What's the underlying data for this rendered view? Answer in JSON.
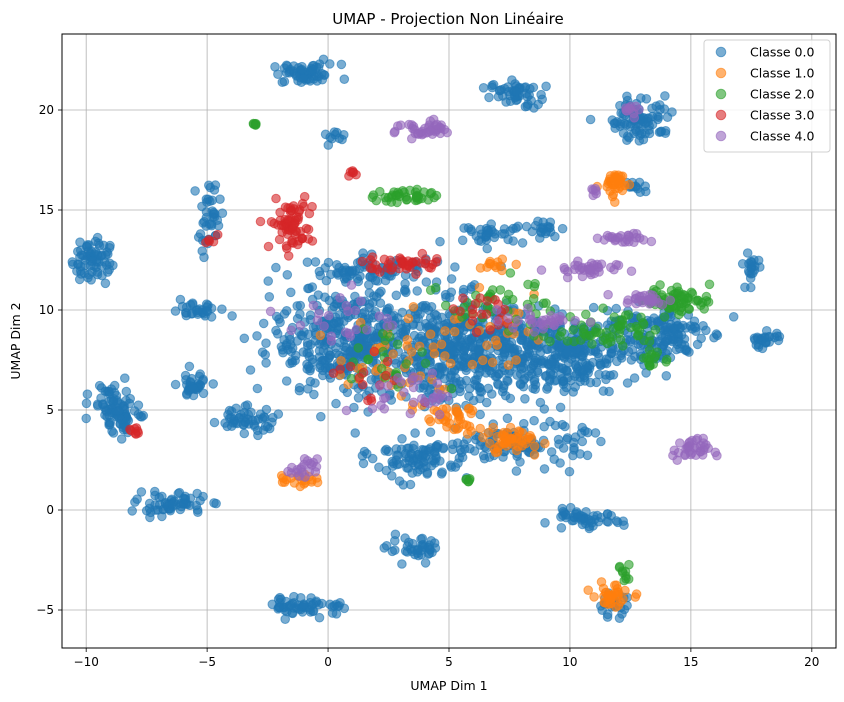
{
  "chart_data": {
    "type": "scatter",
    "title": "UMAP - Projection Non Linéaire",
    "xlabel": "UMAP Dim 1",
    "ylabel": "UMAP Dim 2",
    "xlim": [
      -11,
      21
    ],
    "ylim": [
      -6.9,
      23.8
    ],
    "xticks": [
      -10,
      -5,
      0,
      5,
      10,
      15,
      20
    ],
    "yticks": [
      -5,
      0,
      5,
      10,
      15,
      20
    ],
    "grid": true,
    "legend_position": "top-right",
    "series": [
      {
        "name": "Classe 0.0",
        "color": "#1f77b4",
        "clusters": [
          {
            "cx": -0.9,
            "cy": 21.8,
            "rx": 1.3,
            "ry": 0.45,
            "n": 60
          },
          {
            "cx": 7.7,
            "cy": 20.8,
            "rx": 0.9,
            "ry": 0.6,
            "n": 50
          },
          {
            "cx": 13.0,
            "cy": 19.6,
            "rx": 1.2,
            "ry": 1.0,
            "n": 90
          },
          {
            "cx": -9.8,
            "cy": 12.5,
            "rx": 0.7,
            "ry": 1.1,
            "n": 70
          },
          {
            "cx": -4.9,
            "cy": 14.6,
            "rx": 0.4,
            "ry": 1.5,
            "n": 40
          },
          {
            "cx": -5.5,
            "cy": 10.0,
            "rx": 0.9,
            "ry": 0.35,
            "n": 30
          },
          {
            "cx": -8.9,
            "cy": 5.3,
            "rx": 0.8,
            "ry": 1.0,
            "n": 60
          },
          {
            "cx": -8.6,
            "cy": 4.4,
            "rx": 0.6,
            "ry": 0.6,
            "n": 30
          },
          {
            "cx": -5.6,
            "cy": 6.2,
            "rx": 0.6,
            "ry": 0.6,
            "n": 35
          },
          {
            "cx": -6.5,
            "cy": 0.3,
            "rx": 1.3,
            "ry": 0.5,
            "n": 60
          },
          {
            "cx": -0.8,
            "cy": -4.8,
            "rx": 1.5,
            "ry": 0.4,
            "n": 60
          },
          {
            "cx": 3.6,
            "cy": -2.0,
            "rx": 1.0,
            "ry": 0.5,
            "n": 40
          },
          {
            "cx": 10.5,
            "cy": -0.5,
            "rx": 1.5,
            "ry": 0.4,
            "n": 50
          },
          {
            "cx": 11.7,
            "cy": -4.7,
            "rx": 0.6,
            "ry": 0.5,
            "n": 25
          },
          {
            "cx": 18.1,
            "cy": 8.5,
            "rx": 0.6,
            "ry": 0.4,
            "n": 25
          },
          {
            "cx": 17.5,
            "cy": 12.2,
            "rx": 0.3,
            "ry": 0.8,
            "n": 20
          },
          {
            "cx": 6.8,
            "cy": 13.8,
            "rx": 1.2,
            "ry": 0.4,
            "n": 35
          },
          {
            "cx": 9.0,
            "cy": 14.0,
            "rx": 0.6,
            "ry": 0.4,
            "n": 20
          },
          {
            "cx": 1.0,
            "cy": 8.5,
            "rx": 3.0,
            "ry": 2.5,
            "n": 420
          },
          {
            "cx": 5.5,
            "cy": 8.0,
            "rx": 2.5,
            "ry": 2.3,
            "n": 380
          },
          {
            "cx": 9.5,
            "cy": 7.8,
            "rx": 3.0,
            "ry": 1.7,
            "n": 340
          },
          {
            "cx": 13.5,
            "cy": 8.8,
            "rx": 1.8,
            "ry": 1.3,
            "n": 150
          },
          {
            "cx": 8.2,
            "cy": 3.3,
            "rx": 2.2,
            "ry": 0.9,
            "n": 120
          },
          {
            "cx": 3.8,
            "cy": 2.6,
            "rx": 1.8,
            "ry": 1.0,
            "n": 100
          },
          {
            "cx": -3.5,
            "cy": 4.5,
            "rx": 1.3,
            "ry": 0.6,
            "n": 50
          },
          {
            "cx": 2.0,
            "cy": 12.0,
            "rx": 2.5,
            "ry": 0.6,
            "n": 80
          },
          {
            "cx": 12.5,
            "cy": 16.3,
            "rx": 0.5,
            "ry": 0.3,
            "n": 12
          },
          {
            "cx": 0.3,
            "cy": 18.7,
            "rx": 0.4,
            "ry": 0.3,
            "n": 10
          }
        ]
      },
      {
        "name": "Classe 1.0",
        "color": "#ff7f0e",
        "clusters": [
          {
            "cx": 11.9,
            "cy": 16.3,
            "rx": 0.5,
            "ry": 0.6,
            "n": 40
          },
          {
            "cx": 11.7,
            "cy": -4.3,
            "rx": 0.7,
            "ry": 0.5,
            "n": 35
          },
          {
            "cx": 7.5,
            "cy": 3.5,
            "rx": 1.2,
            "ry": 0.6,
            "n": 45
          },
          {
            "cx": 5.0,
            "cy": 4.5,
            "rx": 1.3,
            "ry": 0.6,
            "n": 35
          },
          {
            "cx": -1.2,
            "cy": 1.5,
            "rx": 0.7,
            "ry": 0.3,
            "n": 20
          },
          {
            "cx": 3.0,
            "cy": 7.5,
            "rx": 2.5,
            "ry": 2.0,
            "n": 45
          },
          {
            "cx": 6.5,
            "cy": 9.0,
            "rx": 1.8,
            "ry": 1.5,
            "n": 25
          },
          {
            "cx": 6.8,
            "cy": 12.2,
            "rx": 0.8,
            "ry": 0.3,
            "n": 12
          }
        ]
      },
      {
        "name": "Classe 2.0",
        "color": "#2ca02c",
        "clusters": [
          {
            "cx": 3.2,
            "cy": 15.7,
            "rx": 1.1,
            "ry": 0.35,
            "n": 40
          },
          {
            "cx": 14.5,
            "cy": 10.5,
            "rx": 1.2,
            "ry": 0.6,
            "n": 70
          },
          {
            "cx": 11.5,
            "cy": 9.0,
            "rx": 2.0,
            "ry": 0.8,
            "n": 60
          },
          {
            "cx": 7.0,
            "cy": 10.5,
            "rx": 2.0,
            "ry": 1.3,
            "n": 40
          },
          {
            "cx": 12.3,
            "cy": -3.2,
            "rx": 0.3,
            "ry": 0.4,
            "n": 10
          },
          {
            "cx": -3.0,
            "cy": 19.3,
            "rx": 0.1,
            "ry": 0.1,
            "n": 6
          },
          {
            "cx": 5.8,
            "cy": 1.5,
            "rx": 0.1,
            "ry": 0.1,
            "n": 6
          },
          {
            "cx": 13.5,
            "cy": 7.5,
            "rx": 0.5,
            "ry": 0.4,
            "n": 15
          },
          {
            "cx": 2.5,
            "cy": 7.5,
            "rx": 2.0,
            "ry": 1.5,
            "n": 25
          }
        ]
      },
      {
        "name": "Classe 3.0",
        "color": "#d62728",
        "clusters": [
          {
            "cx": -1.5,
            "cy": 14.3,
            "rx": 0.8,
            "ry": 1.2,
            "n": 70
          },
          {
            "cx": 3.2,
            "cy": 12.3,
            "rx": 1.5,
            "ry": 0.4,
            "n": 40
          },
          {
            "cx": -8.0,
            "cy": 3.9,
            "rx": 0.2,
            "ry": 0.2,
            "n": 8
          },
          {
            "cx": 1.1,
            "cy": 16.8,
            "rx": 0.2,
            "ry": 0.2,
            "n": 6
          },
          {
            "cx": 6.5,
            "cy": 9.8,
            "rx": 1.5,
            "ry": 0.8,
            "n": 20
          },
          {
            "cx": 1.5,
            "cy": 6.5,
            "rx": 1.5,
            "ry": 1.5,
            "n": 15
          },
          {
            "cx": -4.8,
            "cy": 13.4,
            "rx": 0.3,
            "ry": 0.3,
            "n": 5
          }
        ]
      },
      {
        "name": "Classe 4.0",
        "color": "#9467bd",
        "clusters": [
          {
            "cx": 4.0,
            "cy": 19.0,
            "rx": 1.1,
            "ry": 0.4,
            "n": 40
          },
          {
            "cx": 12.3,
            "cy": 13.6,
            "rx": 0.9,
            "ry": 0.3,
            "n": 25
          },
          {
            "cx": 10.5,
            "cy": 12.0,
            "rx": 1.3,
            "ry": 0.4,
            "n": 35
          },
          {
            "cx": 15.0,
            "cy": 3.0,
            "rx": 0.7,
            "ry": 0.5,
            "n": 35
          },
          {
            "cx": -1.0,
            "cy": 2.0,
            "rx": 0.5,
            "ry": 0.5,
            "n": 20
          },
          {
            "cx": 13.0,
            "cy": 10.5,
            "rx": 1.0,
            "ry": 0.3,
            "n": 25
          },
          {
            "cx": 9.0,
            "cy": 9.5,
            "rx": 1.5,
            "ry": 0.5,
            "n": 30
          },
          {
            "cx": 3.5,
            "cy": 5.8,
            "rx": 1.5,
            "ry": 1.0,
            "n": 30
          },
          {
            "cx": 11.0,
            "cy": 16.0,
            "rx": 0.2,
            "ry": 0.2,
            "n": 6
          },
          {
            "cx": 0.5,
            "cy": 9.5,
            "rx": 2.0,
            "ry": 1.5,
            "n": 25
          },
          {
            "cx": 12.8,
            "cy": 20.0,
            "rx": 0.5,
            "ry": 0.3,
            "n": 10
          }
        ]
      }
    ]
  }
}
